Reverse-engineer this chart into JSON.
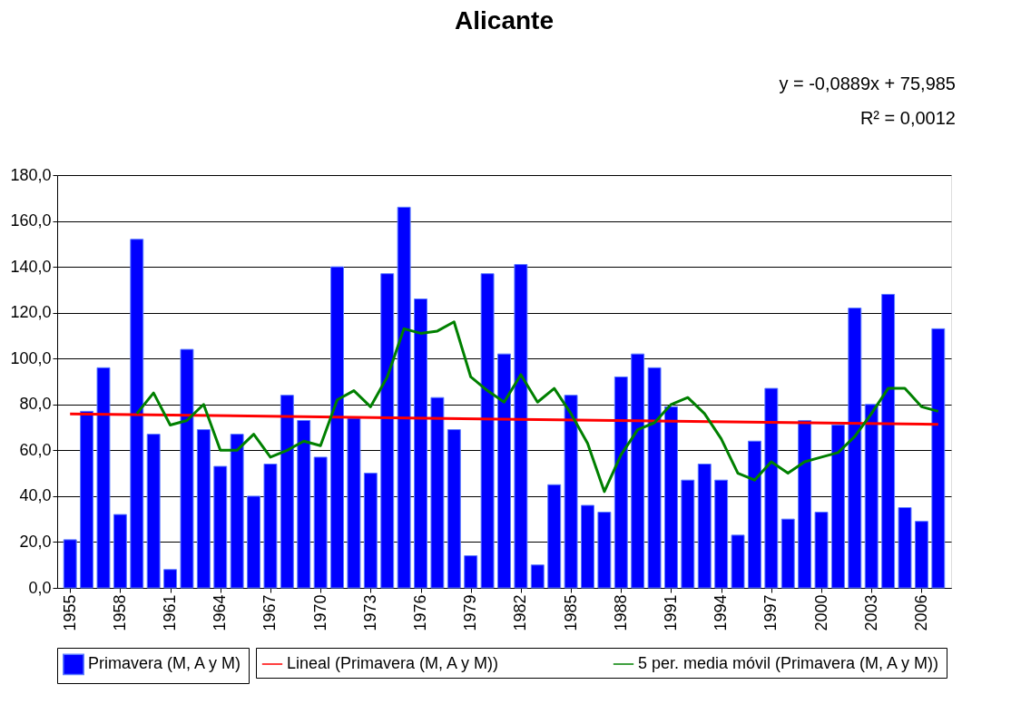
{
  "chart_data": {
    "type": "bar",
    "title": "Alicante",
    "annotations": [
      "y = -0,0889x + 75,985",
      "R² = 0,0012"
    ],
    "x": [
      1955,
      1956,
      1957,
      1958,
      1959,
      1960,
      1961,
      1962,
      1963,
      1964,
      1965,
      1966,
      1967,
      1968,
      1969,
      1970,
      1971,
      1972,
      1973,
      1974,
      1975,
      1976,
      1977,
      1978,
      1979,
      1980,
      1981,
      1982,
      1983,
      1984,
      1985,
      1986,
      1987,
      1988,
      1989,
      1990,
      1991,
      1992,
      1993,
      1994,
      1995,
      1996,
      1997,
      1998,
      1999,
      2000,
      2001,
      2002,
      2003,
      2004,
      2005,
      2006,
      2007
    ],
    "series": [
      {
        "name": "Primavera (M, A y M)",
        "color": "#0000ff",
        "values": [
          21,
          77,
          96,
          32,
          152,
          67,
          8,
          104,
          69,
          53,
          67,
          40,
          54,
          84,
          73,
          57,
          140,
          74,
          50,
          137,
          166,
          126,
          83,
          69,
          14,
          137,
          102,
          141,
          10,
          45,
          84,
          36,
          33,
          92,
          102,
          96,
          79,
          47,
          54,
          47,
          23,
          64,
          87,
          30,
          73,
          33,
          71,
          122,
          80,
          128,
          35,
          29,
          113
        ]
      },
      {
        "name": "Lineal (Primavera (M, A y M))",
        "type": "line",
        "color": "#ff0000",
        "x": [
          1955,
          2007
        ],
        "values": [
          75.9,
          71.3
        ]
      },
      {
        "name": "5 per. media móvil (Primavera (M, A y M))",
        "type": "line",
        "color": "#008000",
        "x": [
          1959,
          1960,
          1961,
          1962,
          1963,
          1964,
          1965,
          1966,
          1967,
          1968,
          1969,
          1970,
          1971,
          1972,
          1973,
          1974,
          1975,
          1976,
          1977,
          1978,
          1979,
          1980,
          1981,
          1982,
          1983,
          1984,
          1985,
          1986,
          1987,
          1988,
          1989,
          1990,
          1991,
          1992,
          1993,
          1994,
          1995,
          1996,
          1997,
          1998,
          1999,
          2000,
          2001,
          2002,
          2003,
          2004,
          2005,
          2006,
          2007
        ],
        "values": [
          76,
          85,
          71,
          73,
          80,
          60,
          60,
          67,
          57,
          60,
          64,
          62,
          82,
          86,
          79,
          92,
          113,
          111,
          112,
          116,
          92,
          86,
          81,
          93,
          81,
          87,
          76,
          63,
          42,
          58,
          69,
          72,
          80,
          83,
          76,
          65,
          50,
          47,
          55,
          50,
          55,
          57,
          59,
          66,
          76,
          87,
          87,
          79,
          77
        ]
      }
    ],
    "xlim": [
      1954.5,
      2007.5
    ],
    "xticks": [
      1955,
      1958,
      1961,
      1964,
      1967,
      1970,
      1973,
      1976,
      1979,
      1982,
      1985,
      1988,
      1991,
      1994,
      1997,
      2000,
      2003,
      2006
    ],
    "ylim": [
      0,
      180
    ],
    "yticks": [
      {
        "value": 0,
        "label": "0,0"
      },
      {
        "value": 20,
        "label": "20,0"
      },
      {
        "value": 40,
        "label": "40,0"
      },
      {
        "value": 60,
        "label": "60,0"
      },
      {
        "value": 80,
        "label": "80,0"
      },
      {
        "value": 100,
        "label": "100,0"
      },
      {
        "value": 120,
        "label": "120,0"
      },
      {
        "value": 140,
        "label": "140,0"
      },
      {
        "value": 160,
        "label": "160,0"
      },
      {
        "value": 180,
        "label": "180,0"
      }
    ],
    "grid": "y",
    "legend": "bottom",
    "marker": "none",
    "line_style": "solid"
  }
}
